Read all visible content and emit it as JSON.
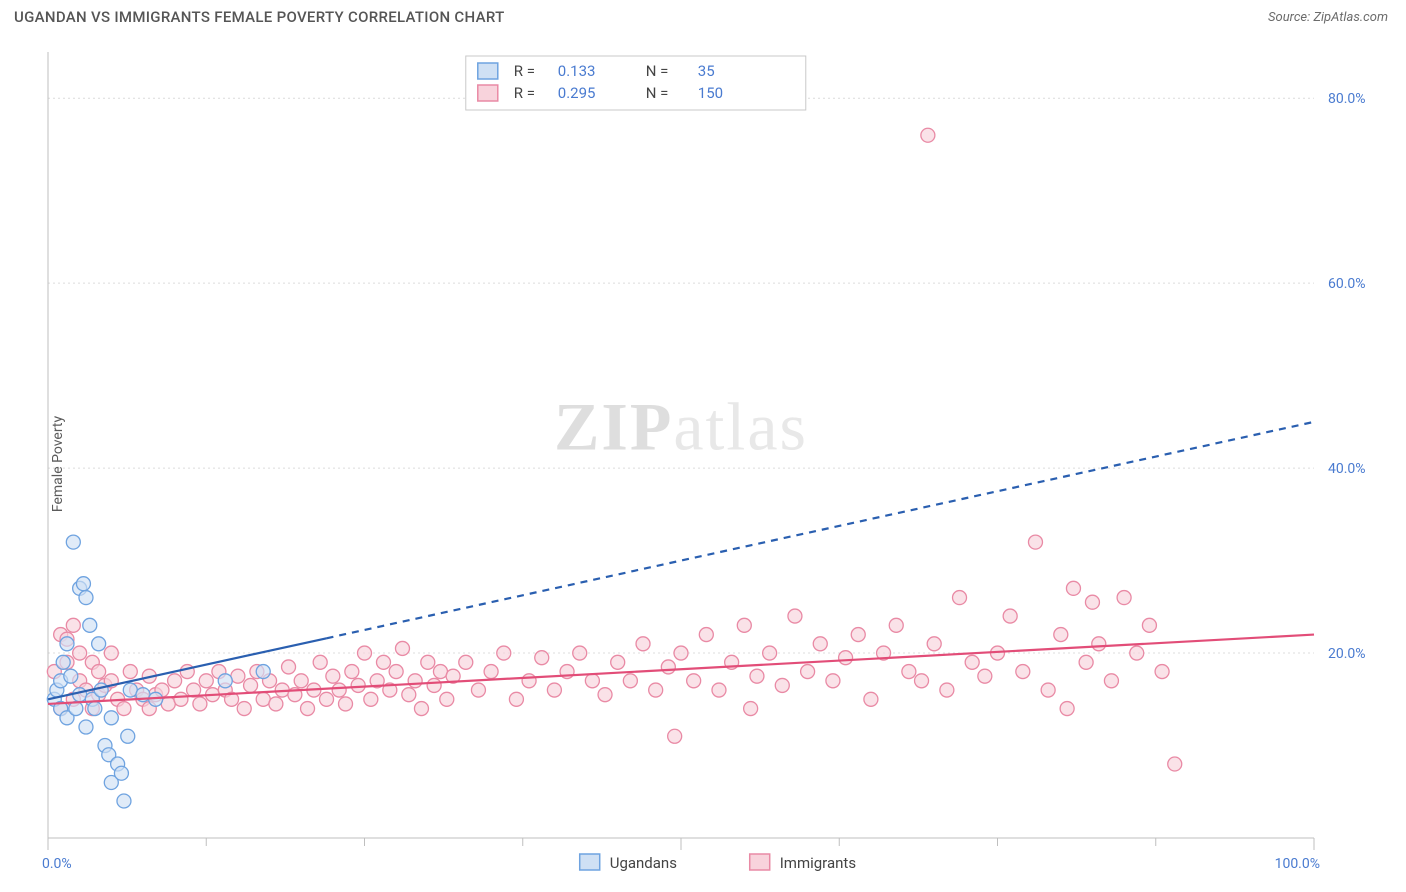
{
  "header": {
    "title": "UGANDAN VS IMMIGRANTS FEMALE POVERTY CORRELATION CHART",
    "source_prefix": "Source: ",
    "source_name": "ZipAtlas.com"
  },
  "ylabel": "Female Poverty",
  "watermark_zip": "ZIP",
  "watermark_atlas": "atlas",
  "chart": {
    "type": "scatter",
    "xlim": [
      0,
      100
    ],
    "ylim": [
      0,
      85
    ],
    "xtick_major": [
      0,
      50,
      100
    ],
    "xtick_minor": [
      12.5,
      25,
      37.5,
      62.5,
      75,
      87.5
    ],
    "ytick_values": [
      20,
      40,
      60,
      80
    ],
    "ytick_labels": [
      "20.0%",
      "40.0%",
      "60.0%",
      "80.0%"
    ],
    "xtick_labels": [
      "0.0%",
      "100.0%"
    ],
    "background_color": "#ffffff",
    "grid_color": "#dcdcdc",
    "axis_color": "#bfbfbf"
  },
  "series": {
    "ugandans": {
      "label": "Ugandans",
      "marker_fill": "#cfe0f4",
      "marker_stroke": "#6fa3e0",
      "marker_r": 7,
      "line_color": "#2a5fb0",
      "line_width": 2.2,
      "line_dash_after_x": 22,
      "trend": {
        "x0": 0,
        "y0": 15,
        "x1": 100,
        "y1": 45
      },
      "R": "0.133",
      "N": "35",
      "points": [
        [
          0.5,
          15
        ],
        [
          0.7,
          16
        ],
        [
          1,
          14
        ],
        [
          1,
          17
        ],
        [
          1.2,
          19
        ],
        [
          1.5,
          13
        ],
        [
          1.5,
          21
        ],
        [
          1.8,
          17.5
        ],
        [
          2,
          32
        ],
        [
          2.2,
          14
        ],
        [
          2.5,
          15.5
        ],
        [
          2.5,
          27
        ],
        [
          2.8,
          27.5
        ],
        [
          3,
          12
        ],
        [
          3,
          26
        ],
        [
          3.3,
          23
        ],
        [
          3.5,
          15
        ],
        [
          3.7,
          14
        ],
        [
          4,
          21
        ],
        [
          4.2,
          16
        ],
        [
          4.5,
          10
        ],
        [
          4.8,
          9
        ],
        [
          5,
          6
        ],
        [
          5,
          13
        ],
        [
          5.5,
          8
        ],
        [
          5.8,
          7
        ],
        [
          6,
          4
        ],
        [
          6.3,
          11
        ],
        [
          6.5,
          16
        ],
        [
          7.5,
          15.5
        ],
        [
          8.5,
          15
        ],
        [
          14,
          17
        ],
        [
          17,
          18
        ]
      ]
    },
    "immigrants": {
      "label": "Immigrants",
      "marker_fill": "#f8d3dc",
      "marker_stroke": "#e98aa5",
      "marker_r": 7,
      "line_color": "#e24d78",
      "line_width": 2.2,
      "trend": {
        "x0": 0,
        "y0": 14.5,
        "x1": 100,
        "y1": 22
      },
      "R": "0.295",
      "N": "150",
      "points": [
        [
          0.5,
          18
        ],
        [
          1,
          22
        ],
        [
          1,
          14
        ],
        [
          1.5,
          19
        ],
        [
          1.5,
          21.5
        ],
        [
          2,
          23
        ],
        [
          2,
          15
        ],
        [
          2.5,
          20
        ],
        [
          2.5,
          17
        ],
        [
          3,
          16
        ],
        [
          3.5,
          19
        ],
        [
          3.5,
          14
        ],
        [
          4,
          18
        ],
        [
          4,
          15.5
        ],
        [
          4.5,
          16.5
        ],
        [
          5,
          17
        ],
        [
          5,
          20
        ],
        [
          5.5,
          15
        ],
        [
          6,
          14
        ],
        [
          6.5,
          18
        ],
        [
          7,
          16
        ],
        [
          7.5,
          15
        ],
        [
          8,
          17.5
        ],
        [
          8,
          14
        ],
        [
          8.5,
          15.5
        ],
        [
          9,
          16
        ],
        [
          9.5,
          14.5
        ],
        [
          10,
          17
        ],
        [
          10.5,
          15
        ],
        [
          11,
          18
        ],
        [
          11.5,
          16
        ],
        [
          12,
          14.5
        ],
        [
          12.5,
          17
        ],
        [
          13,
          15.5
        ],
        [
          13.5,
          18
        ],
        [
          14,
          16
        ],
        [
          14.5,
          15
        ],
        [
          15,
          17.5
        ],
        [
          15.5,
          14
        ],
        [
          16,
          16.5
        ],
        [
          16.5,
          18
        ],
        [
          17,
          15
        ],
        [
          17.5,
          17
        ],
        [
          18,
          14.5
        ],
        [
          18.5,
          16
        ],
        [
          19,
          18.5
        ],
        [
          19.5,
          15.5
        ],
        [
          20,
          17
        ],
        [
          20.5,
          14
        ],
        [
          21,
          16
        ],
        [
          21.5,
          19
        ],
        [
          22,
          15
        ],
        [
          22.5,
          17.5
        ],
        [
          23,
          16
        ],
        [
          23.5,
          14.5
        ],
        [
          24,
          18
        ],
        [
          24.5,
          16.5
        ],
        [
          25,
          20
        ],
        [
          25.5,
          15
        ],
        [
          26,
          17
        ],
        [
          26.5,
          19
        ],
        [
          27,
          16
        ],
        [
          27.5,
          18
        ],
        [
          28,
          20.5
        ],
        [
          28.5,
          15.5
        ],
        [
          29,
          17
        ],
        [
          29.5,
          14
        ],
        [
          30,
          19
        ],
        [
          30.5,
          16.5
        ],
        [
          31,
          18
        ],
        [
          31.5,
          15
        ],
        [
          32,
          17.5
        ],
        [
          33,
          19
        ],
        [
          34,
          16
        ],
        [
          35,
          18
        ],
        [
          36,
          20
        ],
        [
          37,
          15
        ],
        [
          38,
          17
        ],
        [
          39,
          19.5
        ],
        [
          40,
          16
        ],
        [
          41,
          18
        ],
        [
          42,
          20
        ],
        [
          43,
          17
        ],
        [
          44,
          15.5
        ],
        [
          45,
          19
        ],
        [
          46,
          17
        ],
        [
          47,
          21
        ],
        [
          48,
          16
        ],
        [
          49,
          18.5
        ],
        [
          49.5,
          11
        ],
        [
          50,
          20
        ],
        [
          51,
          17
        ],
        [
          52,
          22
        ],
        [
          53,
          16
        ],
        [
          54,
          19
        ],
        [
          55,
          23
        ],
        [
          55.5,
          14
        ],
        [
          56,
          17.5
        ],
        [
          57,
          20
        ],
        [
          58,
          16.5
        ],
        [
          59,
          24
        ],
        [
          60,
          18
        ],
        [
          61,
          21
        ],
        [
          62,
          17
        ],
        [
          63,
          19.5
        ],
        [
          64,
          22
        ],
        [
          65,
          15
        ],
        [
          66,
          20
        ],
        [
          67,
          23
        ],
        [
          68,
          18
        ],
        [
          69,
          17
        ],
        [
          69.5,
          76
        ],
        [
          70,
          21
        ],
        [
          71,
          16
        ],
        [
          72,
          26
        ],
        [
          73,
          19
        ],
        [
          74,
          17.5
        ],
        [
          75,
          20
        ],
        [
          76,
          24
        ],
        [
          77,
          18
        ],
        [
          78,
          32
        ],
        [
          79,
          16
        ],
        [
          80,
          22
        ],
        [
          80.5,
          14
        ],
        [
          81,
          27
        ],
        [
          82,
          19
        ],
        [
          82.5,
          25.5
        ],
        [
          83,
          21
        ],
        [
          84,
          17
        ],
        [
          85,
          26
        ],
        [
          86,
          20
        ],
        [
          87,
          23
        ],
        [
          88,
          18
        ],
        [
          89,
          8
        ]
      ]
    }
  },
  "stats_box": {
    "r_label": "R =",
    "n_label": "N ="
  }
}
